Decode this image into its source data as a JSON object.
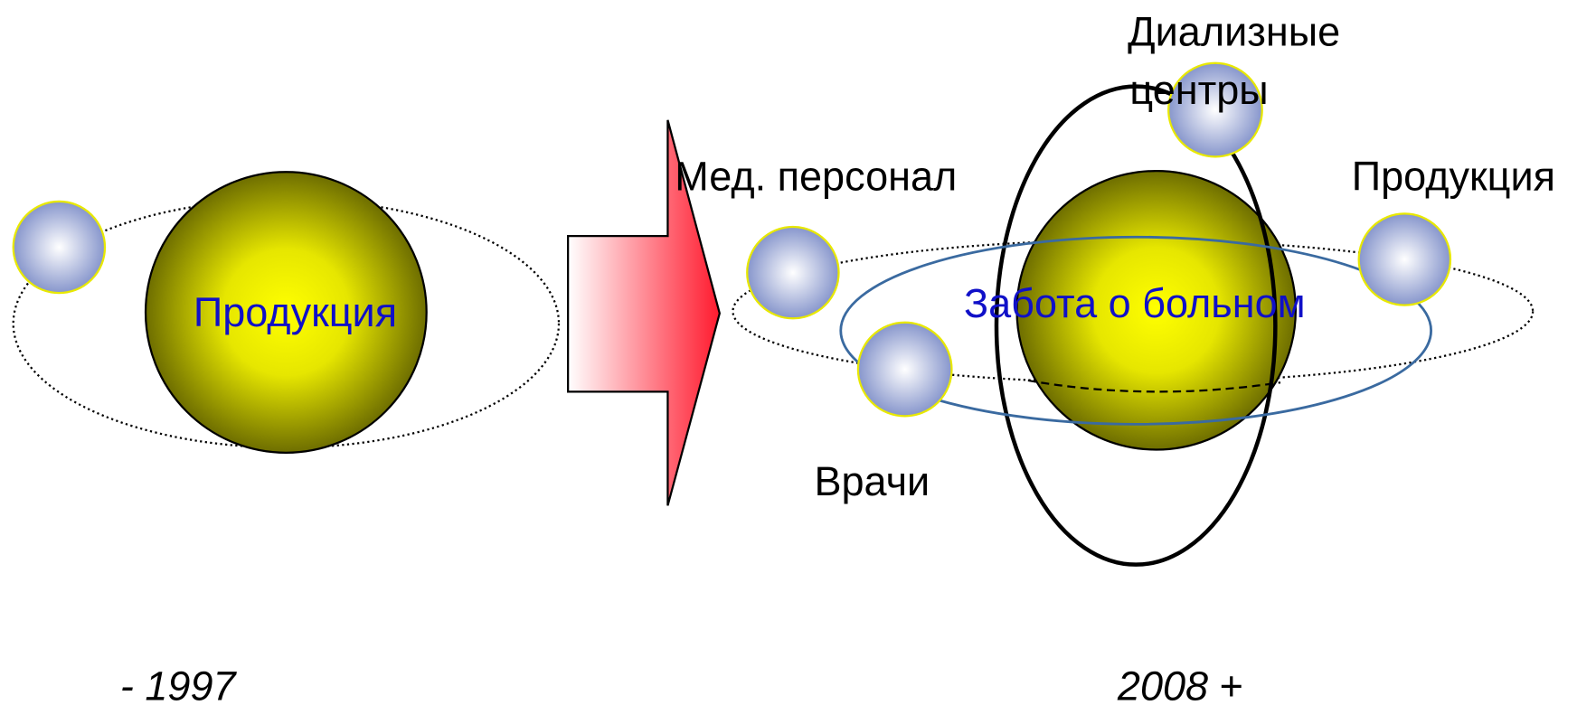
{
  "left": {
    "center_label": "Продукция",
    "period": "- 1997"
  },
  "right": {
    "center_label": "Забота о больном",
    "satellites": {
      "staff": "Мед. персонал",
      "doctors": "Врачи",
      "dialysis_centers": [
        "Диализные",
        "центры"
      ],
      "product": "Продукция"
    },
    "period_year": "2008",
    "period_suffix": "+"
  }
}
